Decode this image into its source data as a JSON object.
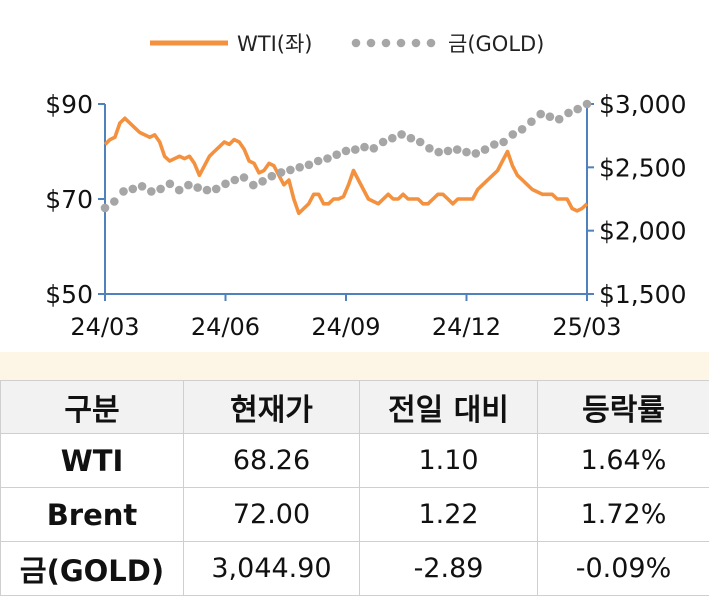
{
  "chart_data": {
    "type": "line",
    "series": [
      {
        "name": "WTI(좌)",
        "axis": "left",
        "color": "#f4913f",
        "style": "line",
        "values": [
          81.5,
          82.5,
          83,
          86,
          87,
          86,
          85,
          84,
          83.5,
          83,
          83.5,
          82,
          79,
          78,
          78.5,
          79,
          78.5,
          79,
          77.5,
          75,
          77,
          79,
          80,
          81,
          82,
          81.5,
          82.5,
          82,
          80.5,
          78,
          77.5,
          75.5,
          76,
          77.5,
          77,
          75,
          73,
          74,
          70,
          67,
          68,
          69,
          71,
          71,
          69,
          69,
          70,
          70,
          70.5,
          73,
          76,
          74,
          72,
          70,
          69.5,
          69,
          70,
          71,
          70,
          70,
          71,
          70,
          70,
          70,
          69,
          69,
          70,
          71,
          71,
          70,
          69,
          70,
          70,
          70,
          70,
          72,
          73,
          74,
          75,
          76,
          78,
          80,
          77,
          75,
          74,
          73,
          72,
          71.5,
          71,
          71,
          71,
          70,
          70,
          70,
          68,
          67.5,
          68,
          69
        ]
      },
      {
        "name": "금(GOLD)",
        "axis": "right",
        "color": "#a6a6a6",
        "style": "dotted",
        "values": [
          2180,
          2230,
          2310,
          2330,
          2350,
          2310,
          2330,
          2370,
          2320,
          2360,
          2340,
          2320,
          2330,
          2370,
          2400,
          2420,
          2360,
          2390,
          2430,
          2460,
          2480,
          2500,
          2520,
          2550,
          2570,
          2600,
          2630,
          2640,
          2660,
          2650,
          2700,
          2730,
          2760,
          2730,
          2700,
          2650,
          2620,
          2630,
          2640,
          2620,
          2610,
          2640,
          2680,
          2700,
          2760,
          2800,
          2860,
          2920,
          2900,
          2880,
          2930,
          2960,
          3000
        ]
      }
    ],
    "x_labels": [
      "24/03",
      "24/06",
      "24/09",
      "24/12",
      "25/03"
    ],
    "y_left": {
      "min": 50,
      "max": 90,
      "ticks": [
        "$50",
        "$70",
        "$90"
      ]
    },
    "y_right": {
      "min": 1500,
      "max": 3000,
      "ticks": [
        "$1,500",
        "$2,000",
        "$2,500",
        "$3,000"
      ]
    },
    "legend_position": "top-center",
    "grid": false
  },
  "table": {
    "headers": [
      "구분",
      "현재가",
      "전일 대비",
      "등락률"
    ],
    "rows": [
      [
        "WTI",
        "68.26",
        "1.10",
        "1.64%"
      ],
      [
        "Brent",
        "72.00",
        "1.22",
        "1.72%"
      ],
      [
        "금(GOLD)",
        "3,044.90",
        "-2.89",
        "-0.09%"
      ]
    ]
  }
}
